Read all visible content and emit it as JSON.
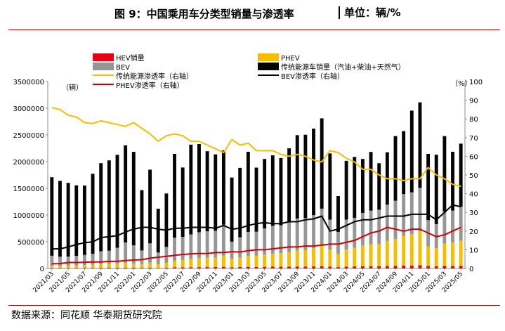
{
  "header": {
    "title": "图 9：中国乘用车分类型销量与渗透率",
    "unit": "单位：辆/%"
  },
  "source": "数据来源：同花顺 华泰期货研究院",
  "colors": {
    "HEV": "#e60012",
    "BEV": "#969696",
    "PHEV": "#f5be00",
    "ICE": "#050505",
    "ice_rate": "#f5be00",
    "bev_rate": "#000000",
    "phev_rate": "#cc0000",
    "accent_rule": "#8b0000"
  },
  "chart_data": {
    "type": "bar",
    "stacked": true,
    "x": [
      "2021/03",
      "2021/04",
      "2021/05",
      "2021/06",
      "2021/07",
      "2021/08",
      "2021/09",
      "2021/10",
      "2021/11",
      "2021/12",
      "2022/01",
      "2022/02",
      "2022/03",
      "2022/04",
      "2022/05",
      "2022/06",
      "2022/07",
      "2022/08",
      "2022/09",
      "2022/10",
      "2022/11",
      "2022/12",
      "2023/01",
      "2023/02",
      "2023/03",
      "2023/04",
      "2023/05",
      "2023/06",
      "2023/07",
      "2023/08",
      "2023/09",
      "2023/10",
      "2023/11",
      "2023/12",
      "2024/01",
      "2024/02",
      "2024/03",
      "2024/04",
      "2024/05",
      "2024/06",
      "2024/07",
      "2024/08",
      "2024/09",
      "2024/10",
      "2024/11",
      "2024/12",
      "2025/01",
      "2025/02",
      "2025/03",
      "2025/04",
      "2025/05"
    ],
    "xtick_labels": [
      "2021/03",
      "2021/05",
      "2021/07",
      "2021/09",
      "2021/11",
      "2022/01",
      "2022/03",
      "2022/05",
      "2022/07",
      "2022/09",
      "2022/11",
      "2023/01",
      "2023/03",
      "2023/05",
      "2023/07",
      "2023/09",
      "2023/11",
      "2024/01",
      "2024/03",
      "2024/05",
      "2024/07",
      "2024/09",
      "2024/11",
      "2025/01",
      "2025/03",
      "2025/05"
    ],
    "left_axis": {
      "label": "（辆）",
      "ylim": [
        0,
        3500000
      ],
      "ticks": [
        "0",
        "500000",
        "1000000",
        "1500000",
        "2000000",
        "2500000",
        "3000000",
        "3500000"
      ]
    },
    "right_axis": {
      "label": "（%）",
      "ylim": [
        0,
        100
      ],
      "ticks": [
        "0",
        "10",
        "20",
        "30",
        "40",
        "50",
        "60",
        "70",
        "80",
        "90",
        "100"
      ]
    },
    "legend": [
      "HEV销量",
      "PHEV",
      "BEV",
      "传统能源车销量（汽油+柴油+天然气）",
      "传统能源渗透率（右轴）",
      "BEV渗透率（右轴）",
      "PHEV渗透率（右轴）"
    ],
    "series": [
      {
        "name": "HEV销量",
        "key": "HEV",
        "kind": "bar",
        "values": [
          8000,
          9000,
          9000,
          10000,
          10000,
          11000,
          12000,
          13000,
          14000,
          16000,
          15000,
          12000,
          15000,
          9000,
          14000,
          20000,
          20000,
          23000,
          24000,
          25000,
          26000,
          30000,
          22000,
          28000,
          30000,
          28000,
          30000,
          33000,
          32000,
          34000,
          36000,
          34000,
          38000,
          40000,
          34000,
          25000,
          35000,
          38000,
          40000,
          42000,
          40000,
          45000,
          48000,
          52000,
          55000,
          60000,
          45000,
          40000,
          48000,
          45000,
          47000
        ]
      },
      {
        "name": "PHEV",
        "key": "PHEV",
        "kind": "bar",
        "values": [
          40000,
          41000,
          43000,
          46000,
          53000,
          62000,
          69000,
          70000,
          74000,
          90000,
          78000,
          75000,
          95000,
          70000,
          90000,
          125000,
          140000,
          155000,
          175000,
          180000,
          180000,
          210000,
          160000,
          175000,
          205000,
          210000,
          230000,
          245000,
          255000,
          275000,
          300000,
          310000,
          340000,
          380000,
          320000,
          250000,
          320000,
          350000,
          390000,
          410000,
          420000,
          470000,
          500000,
          560000,
          590000,
          640000,
          370000,
          340000,
          420000,
          440000,
          470000
        ]
      },
      {
        "name": "BEV",
        "key": "BEV",
        "kind": "bar",
        "values": [
          190000,
          170000,
          170000,
          180000,
          190000,
          200000,
          240000,
          250000,
          300000,
          380000,
          340000,
          250000,
          360000,
          220000,
          300000,
          430000,
          430000,
          460000,
          480000,
          490000,
          500000,
          580000,
          320000,
          380000,
          450000,
          450000,
          490000,
          520000,
          520000,
          560000,
          600000,
          600000,
          620000,
          700000,
          560000,
          410000,
          560000,
          560000,
          610000,
          630000,
          640000,
          680000,
          720000,
          780000,
          780000,
          810000,
          490000,
          450000,
          600000,
          600000,
          640000
        ]
      },
      {
        "name": "传统能源车销量（汽油+柴油+天然气）",
        "key": "ICE",
        "kind": "bar",
        "values": [
          1470000,
          1420000,
          1380000,
          1320000,
          1300000,
          1500000,
          1650000,
          1690000,
          1740000,
          1820000,
          1750000,
          1130000,
          1380000,
          820000,
          1000000,
          1570000,
          1300000,
          1680000,
          1650000,
          1500000,
          1430000,
          1390000,
          1200000,
          1300000,
          1500000,
          1200000,
          1300000,
          1320000,
          1260000,
          1380000,
          1560000,
          1560000,
          1620000,
          1690000,
          1240000,
          670000,
          1100000,
          1140000,
          1010000,
          1100000,
          870000,
          980000,
          1210000,
          1180000,
          1530000,
          1600000,
          1240000,
          1300000,
          1410000,
          1100000,
          1180000
        ]
      },
      {
        "name": "传统能源渗透率（右轴）",
        "key": "ice_rate",
        "kind": "line",
        "values": [
          86,
          85,
          82,
          81,
          78,
          77.5,
          79,
          78,
          77,
          76,
          78,
          75,
          72,
          68,
          71,
          72,
          71,
          68,
          68,
          66,
          64,
          62,
          69,
          66,
          67,
          63,
          63,
          63,
          61,
          60,
          61,
          60,
          58,
          57,
          63,
          62,
          59,
          57,
          53,
          53,
          50,
          48,
          48,
          47,
          48,
          48,
          54,
          50,
          48,
          45,
          44
        ]
      },
      {
        "name": "BEV渗透率（右轴）",
        "key": "bev_rate",
        "kind": "line",
        "values": [
          10.5,
          10.5,
          11.5,
          12.8,
          13.8,
          14.2,
          16.5,
          17,
          17.5,
          19.5,
          21,
          22,
          22,
          21,
          20.5,
          21.5,
          21.5,
          22,
          22,
          22,
          21.5,
          23,
          21,
          21.5,
          23,
          24,
          24.5,
          24,
          24,
          25,
          25,
          26,
          26.5,
          28,
          20,
          21,
          23,
          25,
          26,
          26,
          27,
          28,
          28,
          28,
          29,
          29,
          29,
          26,
          30,
          34,
          33
        ]
      },
      {
        "name": "PHEV渗透率（右轴）",
        "key": "phev_rate",
        "kind": "line",
        "values": [
          2.5,
          2.6,
          3.2,
          3.2,
          3.3,
          3.5,
          3.5,
          3.8,
          3.8,
          4.2,
          4.5,
          4.7,
          5.5,
          6,
          6.5,
          7,
          7.5,
          7.8,
          8,
          8,
          8.5,
          8.5,
          9,
          8.8,
          9.5,
          10,
          10,
          10.5,
          11,
          11.5,
          11.5,
          12,
          12,
          12.5,
          13,
          13,
          14,
          15,
          17,
          19,
          20,
          22,
          21,
          20,
          21,
          21,
          19,
          17,
          18,
          20,
          22
        ]
      }
    ]
  }
}
